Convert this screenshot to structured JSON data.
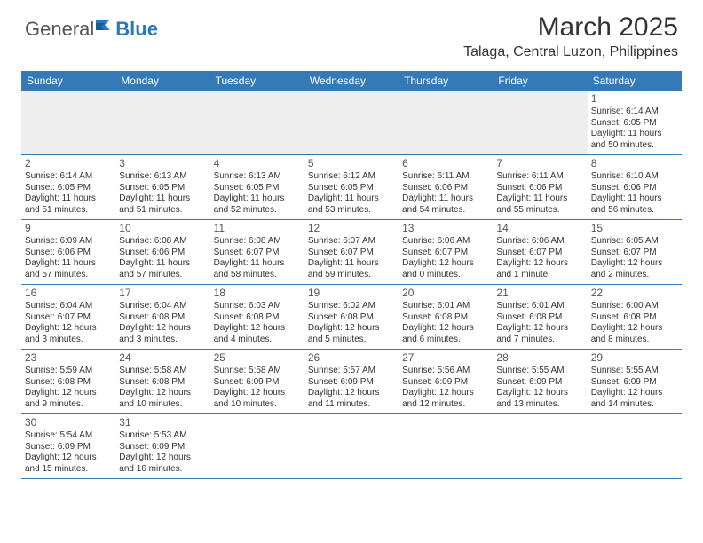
{
  "brand": {
    "part1": "General",
    "part2": "Blue"
  },
  "title": "March 2025",
  "location": "Talaga, Central Luzon, Philippines",
  "header_bg": "#347ab7",
  "day_names": [
    "Sunday",
    "Monday",
    "Tuesday",
    "Wednesday",
    "Thursday",
    "Friday",
    "Saturday"
  ],
  "weeks": [
    [
      null,
      null,
      null,
      null,
      null,
      null,
      {
        "n": "1",
        "sr": "Sunrise: 6:14 AM",
        "ss": "Sunset: 6:05 PM",
        "dl": "Daylight: 11 hours and 50 minutes."
      }
    ],
    [
      {
        "n": "2",
        "sr": "Sunrise: 6:14 AM",
        "ss": "Sunset: 6:05 PM",
        "dl": "Daylight: 11 hours and 51 minutes."
      },
      {
        "n": "3",
        "sr": "Sunrise: 6:13 AM",
        "ss": "Sunset: 6:05 PM",
        "dl": "Daylight: 11 hours and 51 minutes."
      },
      {
        "n": "4",
        "sr": "Sunrise: 6:13 AM",
        "ss": "Sunset: 6:05 PM",
        "dl": "Daylight: 11 hours and 52 minutes."
      },
      {
        "n": "5",
        "sr": "Sunrise: 6:12 AM",
        "ss": "Sunset: 6:05 PM",
        "dl": "Daylight: 11 hours and 53 minutes."
      },
      {
        "n": "6",
        "sr": "Sunrise: 6:11 AM",
        "ss": "Sunset: 6:06 PM",
        "dl": "Daylight: 11 hours and 54 minutes."
      },
      {
        "n": "7",
        "sr": "Sunrise: 6:11 AM",
        "ss": "Sunset: 6:06 PM",
        "dl": "Daylight: 11 hours and 55 minutes."
      },
      {
        "n": "8",
        "sr": "Sunrise: 6:10 AM",
        "ss": "Sunset: 6:06 PM",
        "dl": "Daylight: 11 hours and 56 minutes."
      }
    ],
    [
      {
        "n": "9",
        "sr": "Sunrise: 6:09 AM",
        "ss": "Sunset: 6:06 PM",
        "dl": "Daylight: 11 hours and 57 minutes."
      },
      {
        "n": "10",
        "sr": "Sunrise: 6:08 AM",
        "ss": "Sunset: 6:06 PM",
        "dl": "Daylight: 11 hours and 57 minutes."
      },
      {
        "n": "11",
        "sr": "Sunrise: 6:08 AM",
        "ss": "Sunset: 6:07 PM",
        "dl": "Daylight: 11 hours and 58 minutes."
      },
      {
        "n": "12",
        "sr": "Sunrise: 6:07 AM",
        "ss": "Sunset: 6:07 PM",
        "dl": "Daylight: 11 hours and 59 minutes."
      },
      {
        "n": "13",
        "sr": "Sunrise: 6:06 AM",
        "ss": "Sunset: 6:07 PM",
        "dl": "Daylight: 12 hours and 0 minutes."
      },
      {
        "n": "14",
        "sr": "Sunrise: 6:06 AM",
        "ss": "Sunset: 6:07 PM",
        "dl": "Daylight: 12 hours and 1 minute."
      },
      {
        "n": "15",
        "sr": "Sunrise: 6:05 AM",
        "ss": "Sunset: 6:07 PM",
        "dl": "Daylight: 12 hours and 2 minutes."
      }
    ],
    [
      {
        "n": "16",
        "sr": "Sunrise: 6:04 AM",
        "ss": "Sunset: 6:07 PM",
        "dl": "Daylight: 12 hours and 3 minutes."
      },
      {
        "n": "17",
        "sr": "Sunrise: 6:04 AM",
        "ss": "Sunset: 6:08 PM",
        "dl": "Daylight: 12 hours and 3 minutes."
      },
      {
        "n": "18",
        "sr": "Sunrise: 6:03 AM",
        "ss": "Sunset: 6:08 PM",
        "dl": "Daylight: 12 hours and 4 minutes."
      },
      {
        "n": "19",
        "sr": "Sunrise: 6:02 AM",
        "ss": "Sunset: 6:08 PM",
        "dl": "Daylight: 12 hours and 5 minutes."
      },
      {
        "n": "20",
        "sr": "Sunrise: 6:01 AM",
        "ss": "Sunset: 6:08 PM",
        "dl": "Daylight: 12 hours and 6 minutes."
      },
      {
        "n": "21",
        "sr": "Sunrise: 6:01 AM",
        "ss": "Sunset: 6:08 PM",
        "dl": "Daylight: 12 hours and 7 minutes."
      },
      {
        "n": "22",
        "sr": "Sunrise: 6:00 AM",
        "ss": "Sunset: 6:08 PM",
        "dl": "Daylight: 12 hours and 8 minutes."
      }
    ],
    [
      {
        "n": "23",
        "sr": "Sunrise: 5:59 AM",
        "ss": "Sunset: 6:08 PM",
        "dl": "Daylight: 12 hours and 9 minutes."
      },
      {
        "n": "24",
        "sr": "Sunrise: 5:58 AM",
        "ss": "Sunset: 6:08 PM",
        "dl": "Daylight: 12 hours and 10 minutes."
      },
      {
        "n": "25",
        "sr": "Sunrise: 5:58 AM",
        "ss": "Sunset: 6:09 PM",
        "dl": "Daylight: 12 hours and 10 minutes."
      },
      {
        "n": "26",
        "sr": "Sunrise: 5:57 AM",
        "ss": "Sunset: 6:09 PM",
        "dl": "Daylight: 12 hours and 11 minutes."
      },
      {
        "n": "27",
        "sr": "Sunrise: 5:56 AM",
        "ss": "Sunset: 6:09 PM",
        "dl": "Daylight: 12 hours and 12 minutes."
      },
      {
        "n": "28",
        "sr": "Sunrise: 5:55 AM",
        "ss": "Sunset: 6:09 PM",
        "dl": "Daylight: 12 hours and 13 minutes."
      },
      {
        "n": "29",
        "sr": "Sunrise: 5:55 AM",
        "ss": "Sunset: 6:09 PM",
        "dl": "Daylight: 12 hours and 14 minutes."
      }
    ],
    [
      {
        "n": "30",
        "sr": "Sunrise: 5:54 AM",
        "ss": "Sunset: 6:09 PM",
        "dl": "Daylight: 12 hours and 15 minutes."
      },
      {
        "n": "31",
        "sr": "Sunrise: 5:53 AM",
        "ss": "Sunset: 6:09 PM",
        "dl": "Daylight: 12 hours and 16 minutes."
      },
      null,
      null,
      null,
      null,
      null
    ]
  ]
}
